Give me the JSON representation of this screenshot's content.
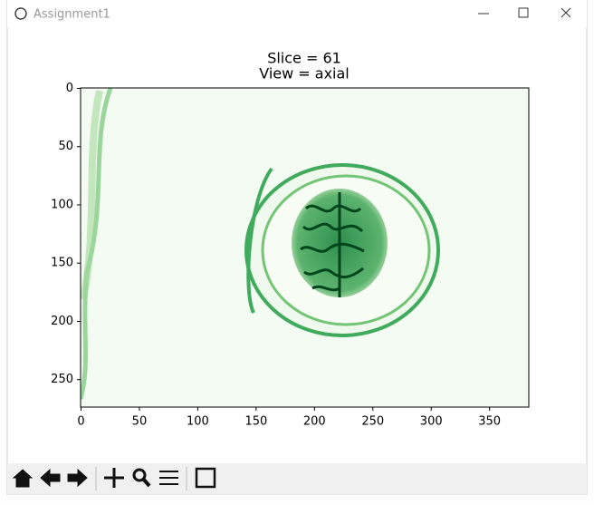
{
  "window": {
    "title": "Assignment1"
  },
  "chart_data": {
    "type": "image",
    "title": "Slice = 61",
    "subtitle": "View = axial",
    "xlim": [
      0,
      384
    ],
    "ylim": [
      0,
      274
    ],
    "y_inverted": true,
    "xticks": [
      0,
      50,
      100,
      150,
      200,
      250,
      300,
      350
    ],
    "yticks": [
      0,
      50,
      100,
      150,
      200,
      250
    ],
    "colormap": "Greens"
  }
}
